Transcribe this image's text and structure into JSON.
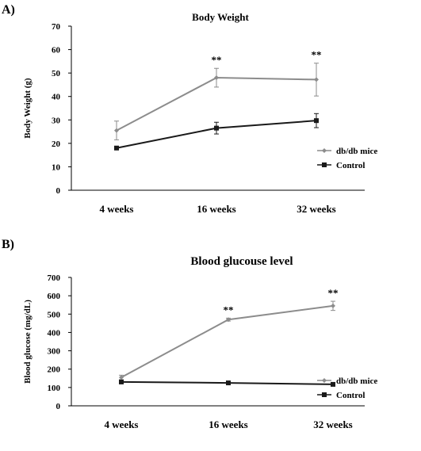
{
  "chart_data": [
    {
      "type": "line",
      "panel": "A)",
      "title": "Body Weight",
      "xlabel": "",
      "ylabel": "Body Weight (g)",
      "categories": [
        "4 weeks",
        "16 weeks",
        "32 weeks"
      ],
      "ylim": [
        0,
        70
      ],
      "yticks": [
        0,
        10,
        20,
        30,
        40,
        50,
        60,
        70
      ],
      "series": [
        {
          "name": "db/db mice",
          "color": "#8c8c8c",
          "marker": "diamond",
          "values": [
            25.5,
            48,
            47.2
          ],
          "errors": [
            4,
            4,
            7
          ],
          "significance": [
            "",
            "**",
            "**"
          ]
        },
        {
          "name": "Control",
          "color": "#1a1a1a",
          "marker": "square",
          "values": [
            18,
            26.5,
            29.7
          ],
          "errors": [
            0.5,
            2.5,
            3
          ],
          "significance": [
            "",
            "",
            ""
          ]
        }
      ],
      "legend": "right"
    },
    {
      "type": "line",
      "panel": "B)",
      "title": "Blood glucouse level",
      "xlabel": "",
      "ylabel": "Blood glucose (mg/dL)",
      "categories": [
        "4 weeks",
        "16 weeks",
        "32 weeks"
      ],
      "ylim": [
        0,
        700
      ],
      "yticks": [
        0,
        100,
        200,
        300,
        400,
        500,
        600,
        700
      ],
      "series": [
        {
          "name": "db/db mice",
          "color": "#8c8c8c",
          "marker": "diamond",
          "values": [
            155,
            470,
            545
          ],
          "errors": [
            12,
            8,
            25
          ],
          "significance": [
            "",
            "**",
            "**"
          ]
        },
        {
          "name": "Control",
          "color": "#1a1a1a",
          "marker": "square",
          "values": [
            130,
            125,
            117
          ],
          "errors": [
            5,
            3,
            3
          ],
          "significance": [
            "",
            "",
            ""
          ]
        }
      ],
      "legend": "right"
    }
  ]
}
